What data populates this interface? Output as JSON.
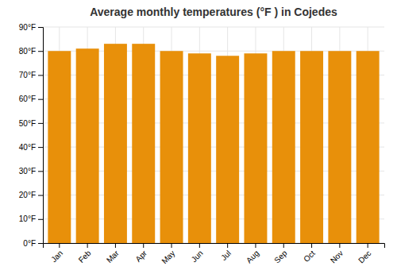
{
  "chart_data": {
    "type": "bar",
    "title": "Average monthly temperatures (°F ) in Cojedes",
    "categories": [
      "Jan",
      "Feb",
      "Mar",
      "Apr",
      "May",
      "Jun",
      "Jul",
      "Aug",
      "Sep",
      "Oct",
      "Nov",
      "Dec"
    ],
    "values": [
      80,
      81,
      83,
      83,
      80,
      79,
      78,
      79,
      80,
      80,
      80,
      80
    ],
    "color": "#E8900A",
    "ylim": [
      0,
      90
    ],
    "yticks": [
      {
        "value": 0,
        "label": "0°F"
      },
      {
        "value": 10,
        "label": "10°F"
      },
      {
        "value": 20,
        "label": "20°F"
      },
      {
        "value": 30,
        "label": "30°F"
      },
      {
        "value": 40,
        "label": "40°F"
      },
      {
        "value": 50,
        "label": "50°F"
      },
      {
        "value": 60,
        "label": "60°F"
      },
      {
        "value": 70,
        "label": "70°F"
      },
      {
        "value": 80,
        "label": "80°F"
      },
      {
        "value": 90,
        "label": "90°F"
      }
    ],
    "grid": true
  }
}
